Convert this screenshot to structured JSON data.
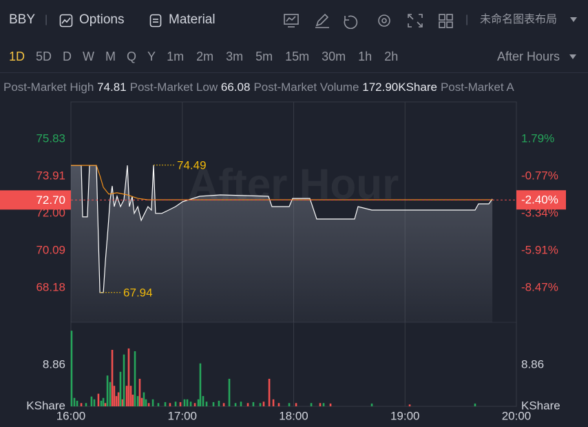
{
  "toolbar": {
    "symbol": "BBY",
    "options": "Options",
    "material": "Material",
    "layout": "未命名图表布局"
  },
  "timeframes": {
    "items": [
      "1D",
      "5D",
      "D",
      "W",
      "M",
      "Q",
      "Y",
      "1m",
      "2m",
      "3m",
      "5m",
      "15m",
      "30m",
      "1h",
      "2h"
    ],
    "active": 0,
    "active_color": "#f5c342",
    "session": "After Hours"
  },
  "info": [
    {
      "label": "Post-Market High",
      "value": "74.81"
    },
    {
      "label": "Post-Market Low",
      "value": "66.08"
    },
    {
      "label": "Post-Market Volume",
      "value": "172.90KShare"
    },
    {
      "label": "Post-Market A"
    }
  ],
  "chart_data": {
    "type": "line",
    "watermark": "After Hour",
    "xlim": [
      16,
      20
    ],
    "xticks": [
      {
        "value": 16,
        "label": "16:00"
      },
      {
        "value": 17,
        "label": "17:00"
      },
      {
        "value": 18,
        "label": "18:00"
      },
      {
        "value": 19,
        "label": "19:00"
      },
      {
        "value": 20,
        "label": "20:00"
      }
    ],
    "xgrid": true,
    "ylim": [
      66.41,
      77.74
    ],
    "yticks": [
      75.83,
      73.91,
      {
        "value": 72,
        "label": "72.00"
      },
      70.09,
      68.18
    ],
    "ytick_colors": [
      "#26a65b",
      "#f0504f",
      "#f0504f",
      "#f0504f",
      "#f0504f"
    ],
    "y2lim": [
      -10.85,
      4.36
    ],
    "y2ticks": [
      {
        "value": 1.79,
        "label": "1.79%"
      },
      {
        "value": -0.77,
        "label": "-0.77%"
      },
      {
        "value": -3.34,
        "label": "-3.34%"
      },
      {
        "value": -5.91,
        "label": "-5.91%"
      },
      {
        "value": -8.47,
        "label": "-8.47%"
      }
    ],
    "y2tick_colors": [
      "#26a65b",
      "#f0504f",
      "#f0504f",
      "#f0504f",
      "#f0504f"
    ],
    "series": [
      {
        "color": "#ffffff",
        "fill": true,
        "x": [
          16.0,
          16.093,
          16.105,
          16.148,
          16.167,
          16.229,
          16.26,
          16.291,
          16.309,
          16.334,
          16.352,
          16.371,
          16.389,
          16.414,
          16.445,
          16.476,
          16.507,
          16.525,
          16.55,
          16.569,
          16.6,
          16.631,
          16.662,
          16.692,
          16.723,
          16.742,
          16.76,
          16.816,
          16.878,
          16.94,
          17.002,
          17.156,
          17.342,
          17.774,
          17.805,
          17.96,
          17.991,
          18.145,
          18.207,
          18.547,
          18.578,
          18.702,
          19.629,
          19.66,
          19.753,
          19.784
        ],
        "values": [
          74.48,
          74.48,
          71.83,
          71.83,
          74.48,
          74.48,
          67.94,
          67.94,
          69.53,
          71.3,
          72.71,
          73.42,
          72.36,
          72.89,
          72.36,
          72.71,
          74.48,
          72.36,
          72.89,
          72.01,
          72.36,
          71.65,
          72.01,
          72.36,
          72.18,
          74.49,
          72.01,
          72.01,
          72.18,
          72.36,
          72.61,
          72.89,
          72.96,
          72.89,
          72.36,
          72.36,
          72.78,
          72.78,
          71.72,
          71.72,
          72.36,
          72.18,
          72.18,
          72.5,
          72.5,
          72.75
        ]
      },
      {
        "color": "#f7931a",
        "fill": false,
        "x": [
          16.0,
          16.229,
          16.26,
          16.291,
          16.34,
          16.414,
          16.507,
          16.6,
          16.692,
          19.784
        ],
        "values": [
          74.48,
          74.48,
          73.95,
          73.35,
          73.0,
          73.07,
          72.96,
          72.78,
          72.71,
          72.71
        ]
      }
    ],
    "annotations": [
      {
        "x": 16.742,
        "y": 74.49
      },
      {
        "x": 16.26,
        "y": 67.94
      }
    ],
    "annotation_color": "#f0b90b",
    "last_price": {
      "value": 72.7,
      "label": "72.70"
    },
    "last_change": {
      "value": -2.4,
      "label": "-2.40%"
    },
    "last_color": "#f0504f",
    "volume": {
      "type": "bar",
      "unit": "KShare",
      "ylim": [
        0,
        17.7
      ],
      "yticks": [
        8.86
      ],
      "x": [
        16.006,
        16.031,
        16.056,
        16.093,
        16.136,
        16.185,
        16.21,
        16.247,
        16.272,
        16.291,
        16.309,
        16.328,
        16.352,
        16.371,
        16.389,
        16.408,
        16.427,
        16.445,
        16.464,
        16.476,
        16.501,
        16.519,
        16.538,
        16.556,
        16.575,
        16.6,
        16.618,
        16.637,
        16.655,
        16.674,
        16.699,
        16.736,
        16.785,
        16.847,
        16.89,
        16.94,
        16.983,
        17.02,
        17.045,
        17.076,
        17.113,
        17.144,
        17.162,
        17.187,
        17.218,
        17.28,
        17.329,
        17.373,
        17.422,
        17.478,
        17.527,
        17.589,
        17.638,
        17.7,
        17.731,
        17.781,
        17.818,
        17.867,
        17.96,
        18.022,
        18.158,
        18.238,
        18.269,
        18.331,
        18.702,
        19.042,
        19.629
      ],
      "values": [
        16.2,
        1.8,
        1.2,
        0.7,
        0.7,
        2.1,
        1.5,
        2.7,
        1.2,
        1.8,
        0.7,
        6.6,
        5.2,
        12.1,
        4.4,
        2.2,
        3.0,
        7.4,
        1.5,
        11.1,
        4.4,
        12.4,
        4.4,
        2.5,
        11.8,
        2.2,
        5.9,
        1.8,
        3.0,
        1.5,
        0.7,
        1.5,
        0.7,
        0.9,
        0.7,
        1.0,
        0.9,
        1.5,
        1.5,
        1.0,
        0.7,
        1.5,
        9.2,
        2.2,
        1.0,
        0.9,
        1.2,
        0.7,
        5.9,
        0.7,
        1.0,
        0.7,
        0.9,
        0.7,
        1.0,
        5.9,
        1.5,
        0.7,
        0.7,
        0.7,
        0.7,
        0.7,
        0.7,
        0.6,
        0.6,
        0.4,
        0.6
      ],
      "colors": [
        "#26a65b",
        "#26a65b",
        "#26a65b",
        "#f0504f",
        "#26a65b",
        "#26a65b",
        "#26a65b",
        "#f0504f",
        "#26a65b",
        "#26a65b",
        "#f0504f",
        "#26a65b",
        "#26a65b",
        "#f0504f",
        "#f0504f",
        "#f0504f",
        "#f0504f",
        "#26a65b",
        "#f0504f",
        "#26a65b",
        "#f0504f",
        "#f0504f",
        "#f0504f",
        "#f0504f",
        "#26a65b",
        "#26a65b",
        "#f0504f",
        "#f0504f",
        "#26a65b",
        "#26a65b",
        "#f0504f",
        "#26a65b",
        "#26a65b",
        "#26a65b",
        "#f0504f",
        "#26a65b",
        "#f0504f",
        "#26a65b",
        "#26a65b",
        "#26a65b",
        "#f0504f",
        "#26a65b",
        "#26a65b",
        "#26a65b",
        "#26a65b",
        "#26a65b",
        "#26a65b",
        "#f0504f",
        "#26a65b",
        "#26a65b",
        "#26a65b",
        "#f0504f",
        "#26a65b",
        "#26a65b",
        "#f0504f",
        "#f0504f",
        "#f0504f",
        "#f0504f",
        "#26a65b",
        "#f0504f",
        "#26a65b",
        "#f0504f",
        "#26a65b",
        "#f0504f",
        "#26a65b",
        "#f0504f",
        "#26a65b"
      ]
    }
  }
}
